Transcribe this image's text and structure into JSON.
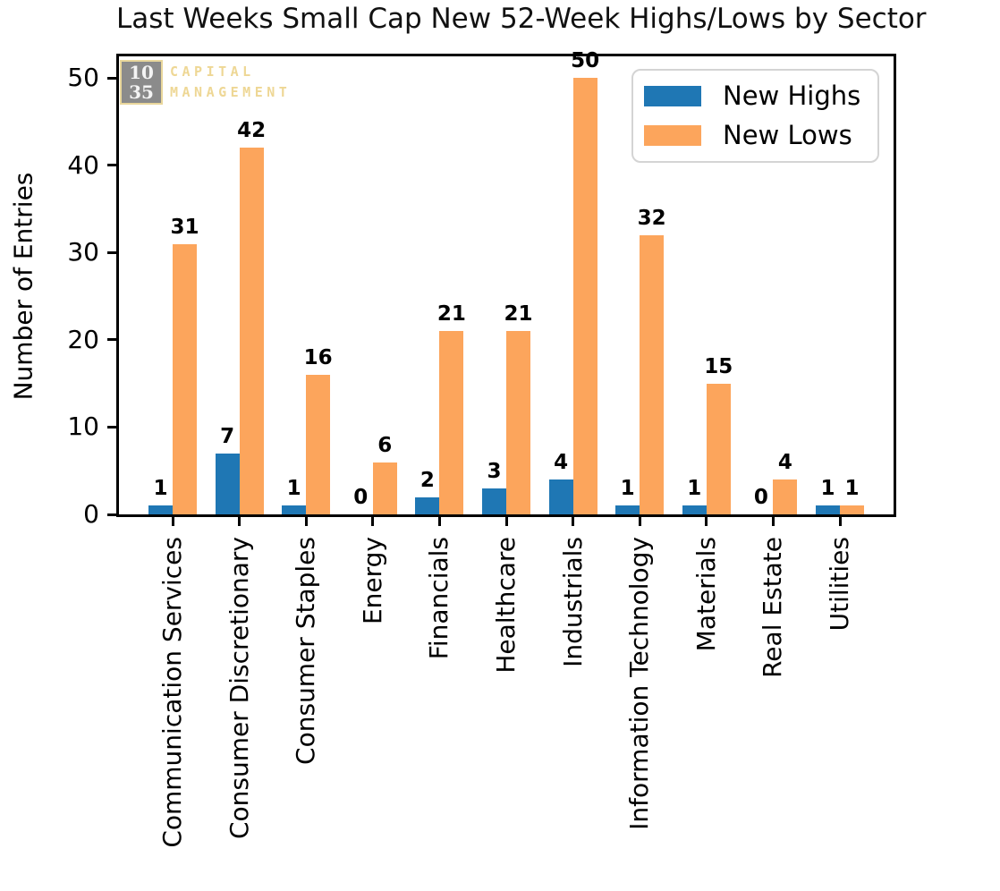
{
  "title": "Last Weeks Small Cap New 52-Week Highs/Lows by Sector",
  "logo": {
    "number_top": "10",
    "number_bottom": "35",
    "text_top": "CAPITAL",
    "text_bottom": "MANAGEMENT",
    "box_color": "#8b8b8b",
    "accent_color": "#eed795"
  },
  "colors": {
    "highs_blue": "#1f77b4",
    "lows_orange": "#fca55c",
    "axis_black": "#000000",
    "legend_border": "#d4d4d4"
  },
  "chart_data": {
    "type": "bar",
    "title": "Last Weeks Small Cap New 52-Week Highs/Lows by Sector",
    "xlabel": "",
    "ylabel": "Number of Entries",
    "categories": [
      "Communication Services",
      "Consumer Discretionary",
      "Consumer Staples",
      "Energy",
      "Financials",
      "Healthcare",
      "Industrials",
      "Information Technology",
      "Materials",
      "Real Estate",
      "Utilities"
    ],
    "series": [
      {
        "name": "New Highs",
        "color": "#1f77b4",
        "values": [
          1,
          7,
          1,
          0,
          2,
          3,
          4,
          1,
          1,
          0,
          1
        ]
      },
      {
        "name": "New Lows",
        "color": "#fca55c",
        "values": [
          31,
          42,
          16,
          6,
          21,
          21,
          50,
          32,
          15,
          4,
          1
        ]
      }
    ],
    "yticks": [
      0,
      10,
      20,
      30,
      40,
      50
    ],
    "ylim": [
      0,
      52.5
    ],
    "bar_labels": true,
    "grid": false,
    "legend_position": "upper right",
    "xtick_rotation": 90
  }
}
